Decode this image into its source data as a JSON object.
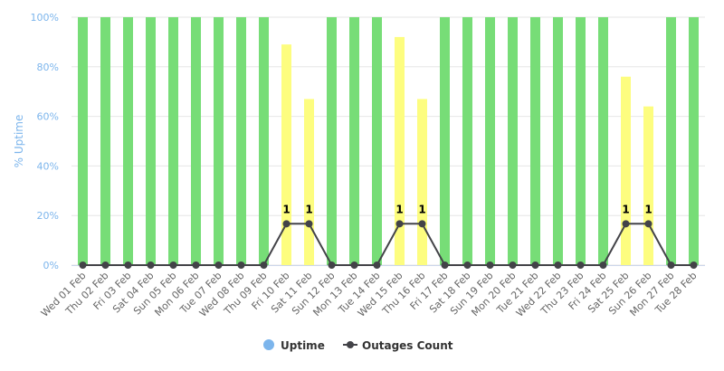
{
  "chart_data": {
    "type": "bar",
    "categories": [
      "Wed 01 Feb",
      "Thu 02 Feb",
      "Fri 03 Feb",
      "Sat 04 Feb",
      "Sun 05 Feb",
      "Mon 06 Feb",
      "Tue 07 Feb",
      "Wed 08 Feb",
      "Thu 09 Feb",
      "Fri 10 Feb",
      "Sat 11 Feb",
      "Sun 12 Feb",
      "Mon 13 Feb",
      "Tue 14 Feb",
      "Wed 15 Feb",
      "Thu 16 Feb",
      "Fri 17 Feb",
      "Sat 18 Feb",
      "Sun 19 Feb",
      "Mon 20 Feb",
      "Tue 21 Feb",
      "Wed 22 Feb",
      "Thu 23 Feb",
      "Fri 24 Feb",
      "Sat 25 Feb",
      "Sun 26 Feb",
      "Mon 27 Feb",
      "Tue 28 Feb"
    ],
    "series": [
      {
        "name": "Uptime",
        "type": "bar",
        "values": [
          100,
          100,
          100,
          100,
          100,
          100,
          100,
          100,
          100,
          89,
          67,
          100,
          100,
          100,
          92,
          67,
          100,
          100,
          100,
          100,
          100,
          100,
          100,
          100,
          76,
          64,
          100,
          100
        ]
      },
      {
        "name": "Outages Count",
        "type": "line",
        "values": [
          0,
          0,
          0,
          0,
          0,
          0,
          0,
          0,
          0,
          1,
          1,
          0,
          0,
          0,
          1,
          1,
          0,
          0,
          0,
          0,
          0,
          0,
          0,
          0,
          1,
          1,
          0,
          0
        ]
      }
    ],
    "ylabel": "% Uptime",
    "ylim": [
      0,
      100
    ],
    "yticks": [
      "0%",
      "20%",
      "40%",
      "60%",
      "80%",
      "100%"
    ],
    "outage_axis_max": 6,
    "legend_placement": "bottom-center",
    "grid": true,
    "colors": {
      "uptime_full": "#77dd77",
      "uptime_partial": "#fdfd7f",
      "outages_line": "#434348",
      "legend_uptime": "#7cb5ec",
      "axis_label": "#7cb5ec",
      "grid": "#e6e6e6"
    }
  }
}
